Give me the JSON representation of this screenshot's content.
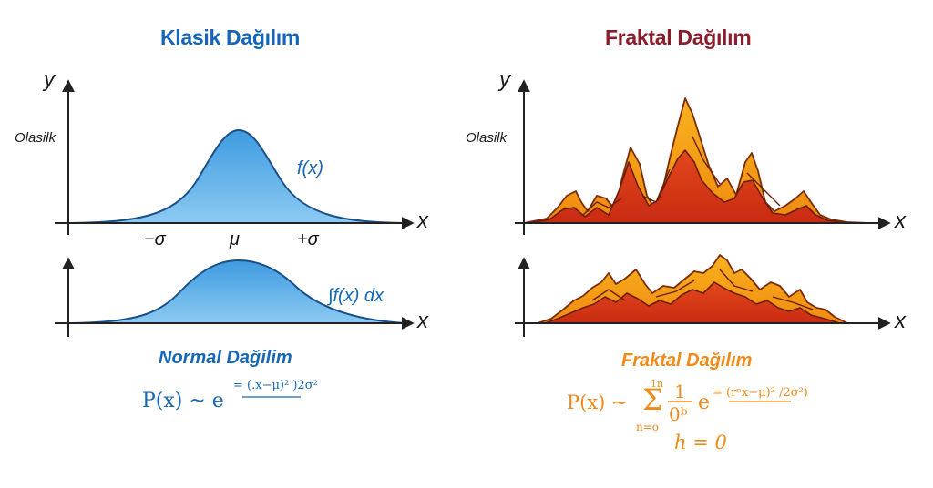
{
  "left": {
    "title": "Klasik Dağılım",
    "y_label": "y",
    "x_label": "x",
    "prob_label": "Olasilk",
    "fx_label": "f(x)",
    "integral_label": "∫f(x) dx",
    "minus_sigma": "−σ",
    "mu": "μ",
    "plus_sigma": "+σ",
    "subtitle": "Normal Dağilim",
    "formula_lhs": "P(x) ~ e",
    "formula_exp_num": "(.x−μ)²",
    "formula_exp_rest": ")2σ²",
    "formula_eq": "="
  },
  "right": {
    "title": "Fraktal Dağılım",
    "y_label": "y",
    "x_label": "x",
    "prob_label": "Olasilk",
    "subtitle": "Fraktal Dağılım",
    "formula_lhs": "P(x) ~",
    "sum_top": "1n",
    "sum_sym": "Σ",
    "sum_bottom": "n=o",
    "frac_num": "1",
    "frac_den": "0ᵇ",
    "exp_base": "e",
    "exp_eq": "=",
    "exp_num": "(rⁿx−μ)²",
    "exp_rest": "/2σ²)",
    "h_line": "h = 0"
  },
  "colors": {
    "blue_dark": "#1668b5",
    "blue_fill": "#5aaee4",
    "orange_fill": "#f7a21c",
    "red_fill": "#d9361a",
    "maroon": "#8b1d2c",
    "orange_text": "#f08a18"
  }
}
